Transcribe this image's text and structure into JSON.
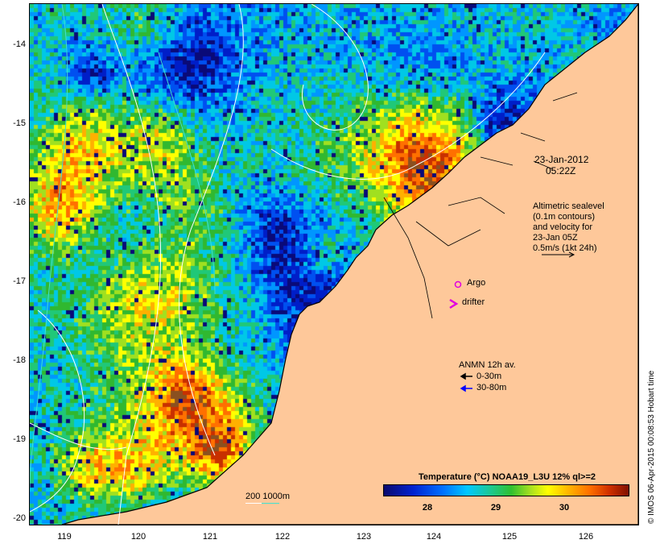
{
  "map": {
    "y_labels": [
      "-14",
      "-15",
      "-16",
      "-17",
      "-18",
      "-19",
      "-20"
    ],
    "x_labels": [
      "119",
      "120",
      "121",
      "122",
      "123",
      "124",
      "125",
      "126"
    ]
  },
  "annotations": {
    "date": "23-Jan-2012",
    "time": "05:22Z",
    "altimetric": [
      "Altimetric sealevel",
      "(0.1m contours)",
      "and velocity for",
      "23-Jan 05Z",
      "0.5m/s (1kt 24h)"
    ],
    "argo": "Argo",
    "drifter": "drifter",
    "anmn_title": "ANMN 12h av.",
    "anmn_shallow": "0-30m",
    "anmn_deep": "30-80m",
    "scale_label": "200  1000m"
  },
  "colorbar": {
    "title": "Temperature (°C) NOAA19_L3U 12% ql>=2",
    "ticks": [
      "28",
      "29",
      "30"
    ]
  },
  "credit": "© IMOS 06-Apr-2015 00:08:53 Hobart time",
  "colors": {
    "land": "#fec89a",
    "argo": "#e000e0",
    "drifter": "#e000e0",
    "anmn_shallow": "#000000",
    "anmn_deep": "#0000ff",
    "contour_200": "#ffffff",
    "contour_1000": "#40e0d0"
  }
}
